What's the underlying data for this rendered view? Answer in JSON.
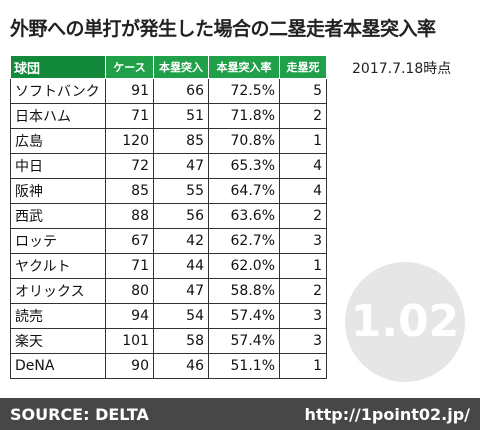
{
  "header": {
    "title": "外野への単打が発生した場合の二塁走者本塁突入率",
    "date": "2017.7.18時点"
  },
  "table": {
    "columns": [
      "球団",
      "ケース",
      "本塁突入",
      "本塁突入率",
      "走塁死"
    ],
    "rows": [
      [
        "ソフトバンク",
        "91",
        "66",
        "72.5%",
        "5"
      ],
      [
        "日本ハム",
        "71",
        "51",
        "71.8%",
        "2"
      ],
      [
        "広島",
        "120",
        "85",
        "70.8%",
        "1"
      ],
      [
        "中日",
        "72",
        "47",
        "65.3%",
        "4"
      ],
      [
        "阪神",
        "85",
        "55",
        "64.7%",
        "4"
      ],
      [
        "西武",
        "88",
        "56",
        "63.6%",
        "2"
      ],
      [
        "ロッテ",
        "67",
        "42",
        "62.7%",
        "3"
      ],
      [
        "ヤクルト",
        "71",
        "44",
        "62.0%",
        "1"
      ],
      [
        "オリックス",
        "80",
        "47",
        "58.8%",
        "2"
      ],
      [
        "読売",
        "94",
        "54",
        "57.4%",
        "3"
      ],
      [
        "楽天",
        "101",
        "58",
        "57.4%",
        "3"
      ],
      [
        "DeNA",
        "90",
        "46",
        "51.1%",
        "1"
      ]
    ]
  },
  "watermark": "1.02",
  "footer": {
    "source": "SOURCE: DELTA",
    "url": "http://1point02.jp/"
  }
}
